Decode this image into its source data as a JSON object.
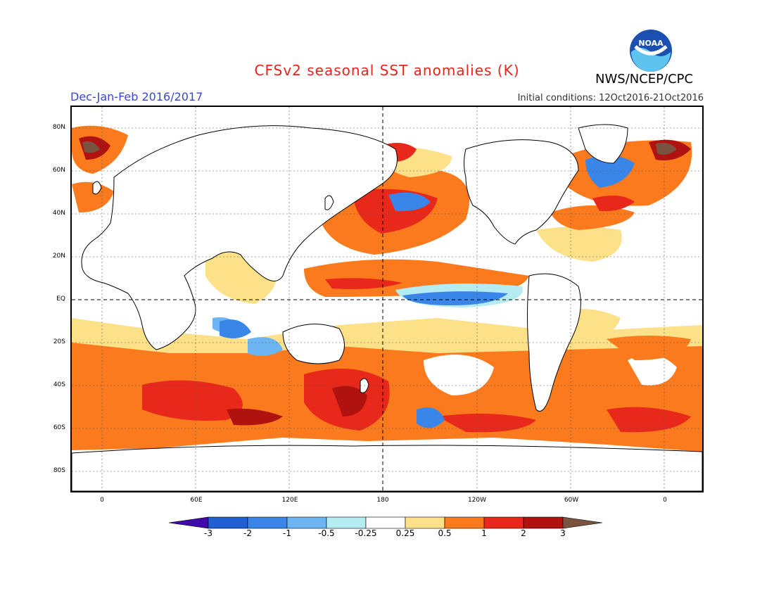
{
  "title": "CFSv2 seasonal SST anomalies (K)",
  "season": "Dec-Jan-Feb 2016/2017",
  "initial_conditions": "Initial conditions: 12Oct2016-21Oct2016",
  "agency": "NWS/NCEP/CPC",
  "logo_text": "NOAA",
  "lat_labels": [
    "80N",
    "60N",
    "40N",
    "20N",
    "EQ",
    "20S",
    "40S",
    "60S",
    "80S"
  ],
  "lon_labels": [
    "0",
    "60E",
    "120E",
    "180",
    "120W",
    "60W",
    "0"
  ],
  "colorbar": {
    "labels": [
      "-3",
      "-2",
      "-1",
      "-0.5",
      "-0.25",
      "0.25",
      "0.5",
      "1",
      "2",
      "3"
    ],
    "colors": [
      "#3e0aa8",
      "#1f5fd2",
      "#3a86e8",
      "#6cb4f2",
      "#b5ecf2",
      "#ffffff",
      "#fde189",
      "#fb7a1d",
      "#e8281a",
      "#b0120f",
      "#795240"
    ]
  },
  "palette": {
    "land": "#ffffff",
    "coast": "#000000",
    "neutral_ocean": "#ffffff",
    "yellow": "#fde189",
    "orange": "#fb7a1d",
    "red": "#e8281a",
    "darkred": "#b0120f",
    "brown": "#795240",
    "lightblue": "#b5ecf2",
    "blue": "#3a86e8",
    "darkblue": "#1f5fd2"
  }
}
